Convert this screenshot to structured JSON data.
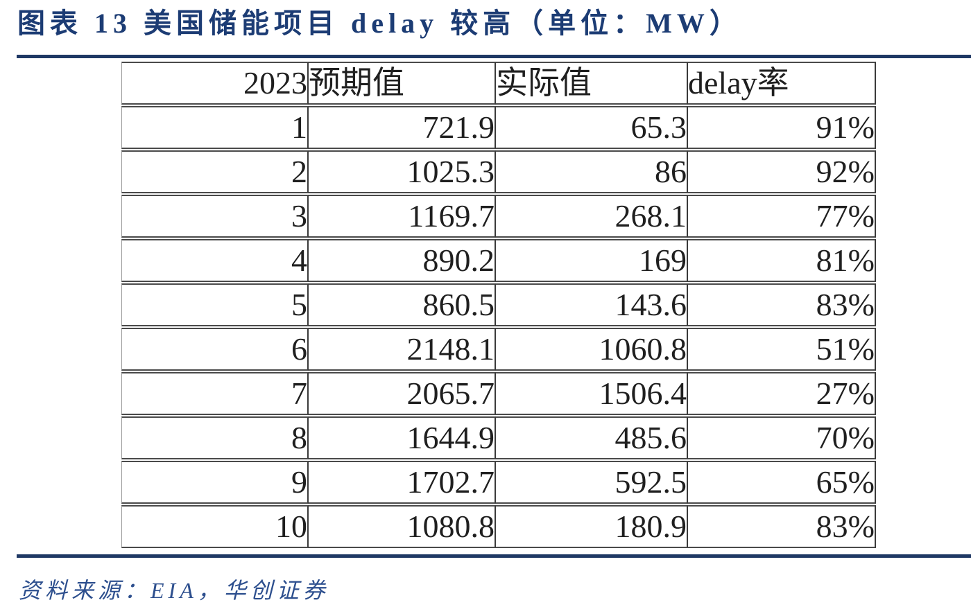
{
  "title": "图表 13  美国储能项目 delay 较高（单位：MW）",
  "source_note": "资料来源：EIA，华创证券",
  "colors": {
    "title_navy": "#1c3c74",
    "rule_navy": "#1f3864",
    "source_blue": "#2d4f8e",
    "table_text": "#1f1f1f",
    "table_border": "#4a4a4a"
  },
  "chart_data": {
    "type": "table",
    "title": "美国储能项目 delay 较高",
    "unit": "MW",
    "figure_label": "图表 13",
    "columns": [
      "2023",
      "预期值",
      "实际值",
      "delay率"
    ],
    "rows": [
      [
        "1",
        "721.9",
        "65.3",
        "91%"
      ],
      [
        "2",
        "1025.3",
        "86",
        "92%"
      ],
      [
        "3",
        "1169.7",
        "268.1",
        "77%"
      ],
      [
        "4",
        "890.2",
        "169",
        "81%"
      ],
      [
        "5",
        "860.5",
        "143.6",
        "83%"
      ],
      [
        "6",
        "2148.1",
        "1060.8",
        "51%"
      ],
      [
        "7",
        "2065.7",
        "1506.4",
        "27%"
      ],
      [
        "8",
        "1644.9",
        "485.6",
        "70%"
      ],
      [
        "9",
        "1702.7",
        "592.5",
        "65%"
      ],
      [
        "10",
        "1080.8",
        "180.9",
        "83%"
      ]
    ]
  }
}
